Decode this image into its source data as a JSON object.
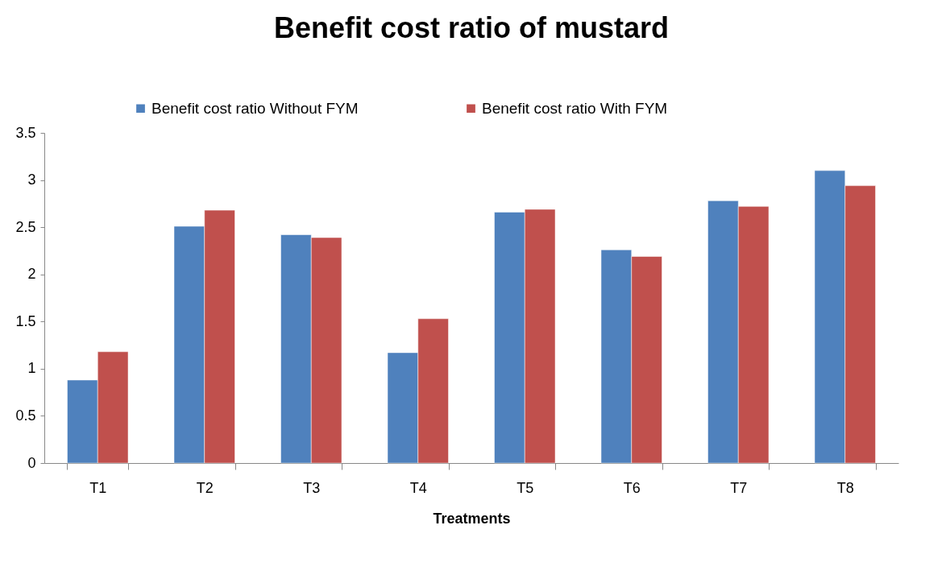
{
  "chart_data": {
    "type": "bar",
    "title": "Benefit cost ratio of mustard",
    "xlabel": "Treatments",
    "categories": [
      "T1",
      "T2",
      "T3",
      "T4",
      "T5",
      "T6",
      "T7",
      "T8"
    ],
    "series": [
      {
        "name": "Benefit cost ratio Without FYM",
        "color": "#4f81bd",
        "values": [
          0.88,
          2.51,
          2.42,
          1.17,
          2.66,
          2.26,
          2.78,
          3.1
        ]
      },
      {
        "name": "Benefit cost ratio With FYM",
        "color": "#c0504d",
        "values": [
          1.18,
          2.68,
          2.39,
          1.53,
          2.69,
          2.19,
          2.72,
          2.94
        ]
      }
    ],
    "ylim": [
      0,
      3.5
    ],
    "yticks": [
      0,
      0.5,
      1,
      1.5,
      2,
      2.5,
      3,
      3.5
    ],
    "grid": false,
    "legend": "top"
  }
}
